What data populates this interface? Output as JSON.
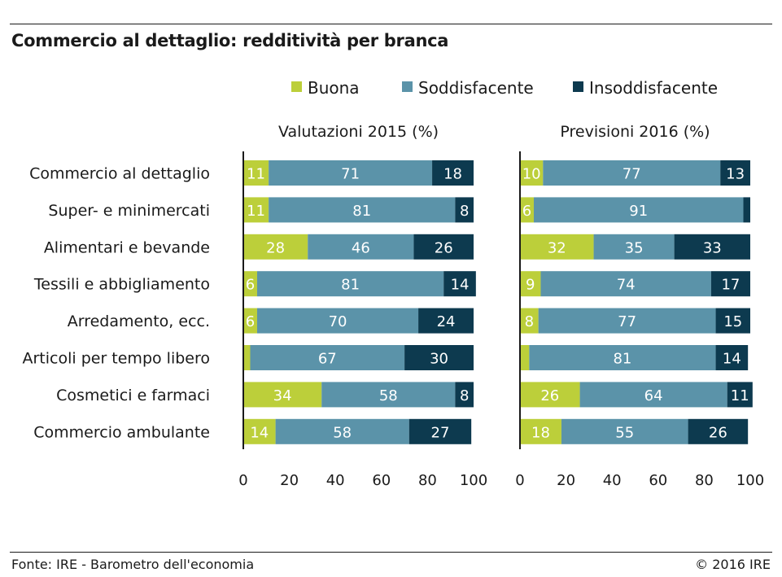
{
  "header": {
    "title": "Commercio al dettaglio: redditività per branca"
  },
  "footer": {
    "source": "Fonte: IRE - Barometro dell'economia",
    "copyright": "© 2016 IRE"
  },
  "chart_data": {
    "type": "bar",
    "orientation": "horizontal",
    "stacked": true,
    "legend_position": "top",
    "colors": {
      "Buona": "#bccf3a",
      "Soddisfacente": "#5b93a9",
      "Insoddisfacente": "#0d3a4f"
    },
    "categories": [
      "Commercio al dettaglio",
      "Super- e minimercati",
      "Alimentari e bevande",
      "Tessili e abbigliamento",
      "Arredamento, ecc.",
      "Articoli per tempo libero",
      "Cosmetici e farmaci",
      "Commercio ambulante"
    ],
    "xlim": [
      0,
      100
    ],
    "xticks": [
      0,
      20,
      40,
      60,
      80,
      100
    ],
    "panels": [
      {
        "title": "Valutazioni 2015 (%)",
        "series": [
          {
            "name": "Buona",
            "values": [
              11,
              11,
              28,
              6,
              6,
              3,
              34,
              14
            ],
            "labels": [
              "11",
              "11",
              "28",
              "6",
              "6",
              "",
              "34",
              "14"
            ]
          },
          {
            "name": "Soddisfacente",
            "values": [
              71,
              81,
              46,
              81,
              70,
              67,
              58,
              58
            ],
            "labels": [
              "71",
              "81",
              "46",
              "81",
              "70",
              "67",
              "58",
              "58"
            ]
          },
          {
            "name": "Insoddisfacente",
            "values": [
              18,
              8,
              26,
              14,
              24,
              30,
              8,
              27
            ],
            "labels": [
              "18",
              "8",
              "26",
              "14",
              "24",
              "30",
              "8",
              "27"
            ]
          }
        ]
      },
      {
        "title": "Previsioni 2016 (%)",
        "series": [
          {
            "name": "Buona",
            "values": [
              10,
              6,
              32,
              9,
              8,
              4,
              26,
              18
            ],
            "labels": [
              "10",
              "6",
              "32",
              "9",
              "8",
              "",
              "26",
              "18"
            ]
          },
          {
            "name": "Soddisfacente",
            "values": [
              77,
              91,
              35,
              74,
              77,
              81,
              64,
              55
            ],
            "labels": [
              "77",
              "91",
              "35",
              "74",
              "77",
              "81",
              "64",
              "55"
            ]
          },
          {
            "name": "Insoddisfacente",
            "values": [
              13,
              3,
              33,
              17,
              15,
              14,
              11,
              26
            ],
            "labels": [
              "13",
              "",
              "33",
              "17",
              "15",
              "14",
              "11",
              "26"
            ]
          }
        ]
      }
    ]
  }
}
